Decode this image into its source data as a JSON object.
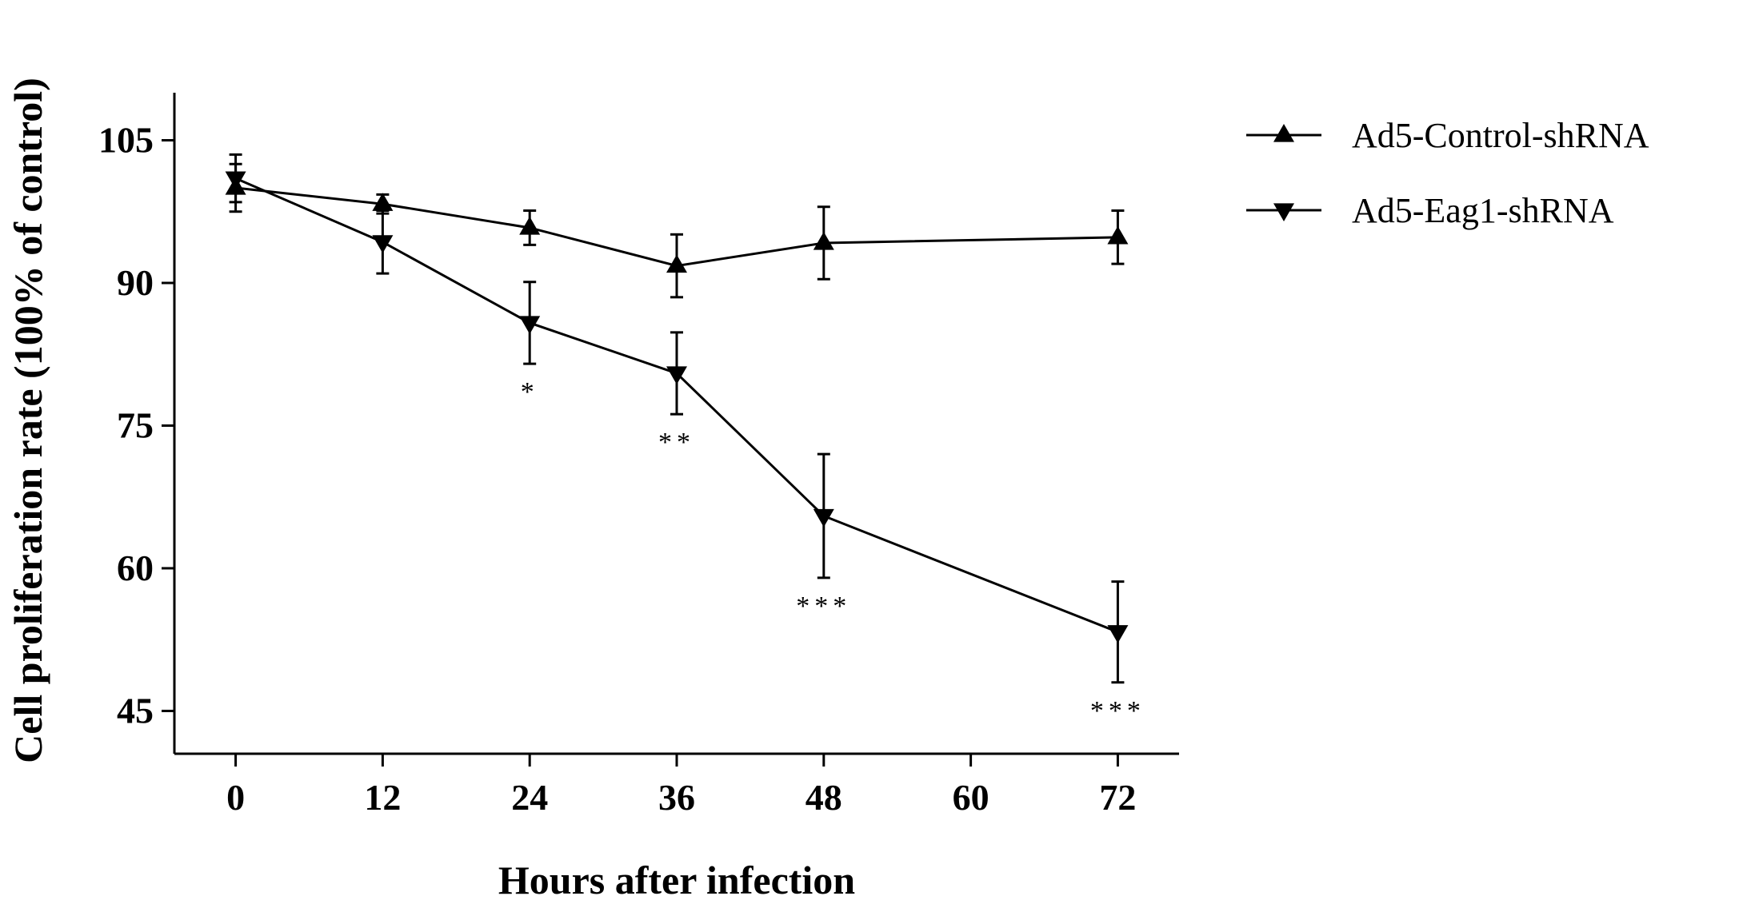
{
  "chart_data": {
    "type": "line",
    "title": "",
    "xlabel": "Hours after infection",
    "ylabel": "Cell proliferation rate (100% of control)",
    "xlim": [
      -5,
      77
    ],
    "ylim": [
      40.5,
      110
    ],
    "xticks": [
      0,
      12,
      24,
      36,
      48,
      60,
      72
    ],
    "yticks": [
      45,
      60,
      75,
      90,
      105
    ],
    "grid": false,
    "legend_position": "top-right",
    "series": [
      {
        "name": "Ad5-Control-shRNA",
        "marker": "triangle-up",
        "x": [
          0,
          12,
          24,
          36,
          48,
          72
        ],
        "y": [
          100.0,
          98.3,
          95.8,
          91.8,
          94.2,
          94.8
        ],
        "err": [
          2.5,
          1.0,
          1.8,
          3.3,
          3.8,
          2.8
        ],
        "annotations": [
          "",
          "",
          "",
          "",
          "",
          ""
        ]
      },
      {
        "name": "Ad5-Eag1-shRNA",
        "marker": "triangle-down",
        "x": [
          0,
          12,
          24,
          36,
          48,
          72
        ],
        "y": [
          101.0,
          94.3,
          85.8,
          80.5,
          65.5,
          53.3
        ],
        "err": [
          2.5,
          3.3,
          4.3,
          4.3,
          6.5,
          5.3
        ],
        "annotations": [
          "",
          "",
          "*",
          "**",
          "***",
          "***"
        ]
      }
    ]
  }
}
